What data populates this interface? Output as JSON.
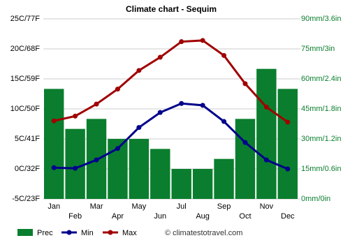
{
  "chart_data": {
    "type": "combo",
    "title": "Climate chart - Sequim",
    "categories": [
      "Jan",
      "Feb",
      "Mar",
      "Apr",
      "May",
      "Jun",
      "Jul",
      "Aug",
      "Sep",
      "Oct",
      "Nov",
      "Dec"
    ],
    "series": [
      {
        "name": "Prec",
        "type": "bar",
        "axis": "y2",
        "color": "#0a7e2e",
        "values": [
          55,
          35,
          40,
          30,
          30,
          25,
          15,
          15,
          20,
          40,
          65,
          55
        ]
      },
      {
        "name": "Min",
        "type": "line",
        "color": "#00008b",
        "values": [
          0.2,
          0.1,
          1.5,
          3.4,
          6.9,
          9.4,
          10.9,
          10.6,
          7.9,
          4.4,
          1.5,
          0
        ]
      },
      {
        "name": "Max",
        "type": "line",
        "color": "#a00000",
        "values": [
          8.0,
          8.8,
          10.8,
          13.3,
          16.4,
          18.6,
          21.2,
          21.4,
          18.9,
          14.2,
          10.3,
          7.8
        ]
      }
    ],
    "ylim": [
      -5,
      25
    ],
    "yticks": [
      {
        "value": -5,
        "label": "-5C/23F"
      },
      {
        "value": 0,
        "label": "0C/32F"
      },
      {
        "value": 5,
        "label": "5C/41F"
      },
      {
        "value": 10,
        "label": "10C/50F"
      },
      {
        "value": 15,
        "label": "15C/59F"
      },
      {
        "value": 20,
        "label": "20C/68F"
      },
      {
        "value": 25,
        "label": "25C/77F"
      }
    ],
    "y2lim": [
      0,
      90
    ],
    "y2ticks": [
      {
        "value": 0,
        "label": "0mm/0in"
      },
      {
        "value": 15,
        "label": "15mm/0.6in"
      },
      {
        "value": 30,
        "label": "30mm/1.2in"
      },
      {
        "value": 45,
        "label": "45mm/1.8in"
      },
      {
        "value": 60,
        "label": "60mm/2.4in"
      },
      {
        "value": 75,
        "label": "75mm/3in"
      },
      {
        "value": 90,
        "label": "90mm/3.6in"
      }
    ],
    "grid": true,
    "source": "© climatestotravel.com"
  }
}
